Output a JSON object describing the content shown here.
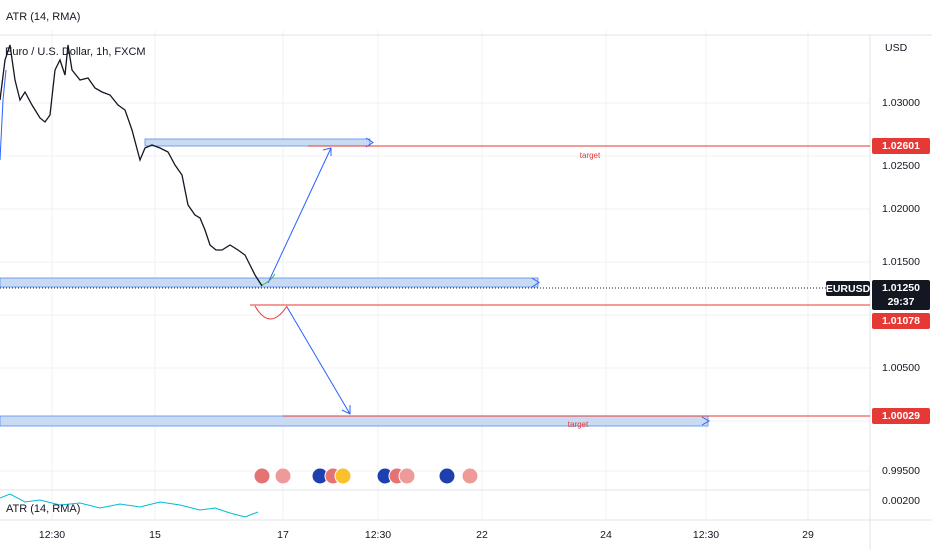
{
  "header": {
    "indicator": "ATR (14, RMA)",
    "symbol_title": "Euro / U.S. Dollar, 1h, FXCM",
    "currency": "USD"
  },
  "price_axis": [
    "1.03000",
    "1.02500",
    "1.02000",
    "1.01500",
    "1.00500",
    "0.99500",
    "0.00200"
  ],
  "time_axis": [
    "12:30",
    "15",
    "17",
    "12:30",
    "22",
    "24",
    "12:30",
    "29"
  ],
  "price_tags": {
    "upper_target": "1.02601",
    "symbol": "EURUSD",
    "current": "1.01250",
    "countdown": "29:37",
    "entry": "1.01078",
    "lower_target": "1.00029"
  },
  "annotations": [
    "target",
    "target"
  ],
  "atr_pane": {
    "label": "ATR (14, RMA)"
  }
}
